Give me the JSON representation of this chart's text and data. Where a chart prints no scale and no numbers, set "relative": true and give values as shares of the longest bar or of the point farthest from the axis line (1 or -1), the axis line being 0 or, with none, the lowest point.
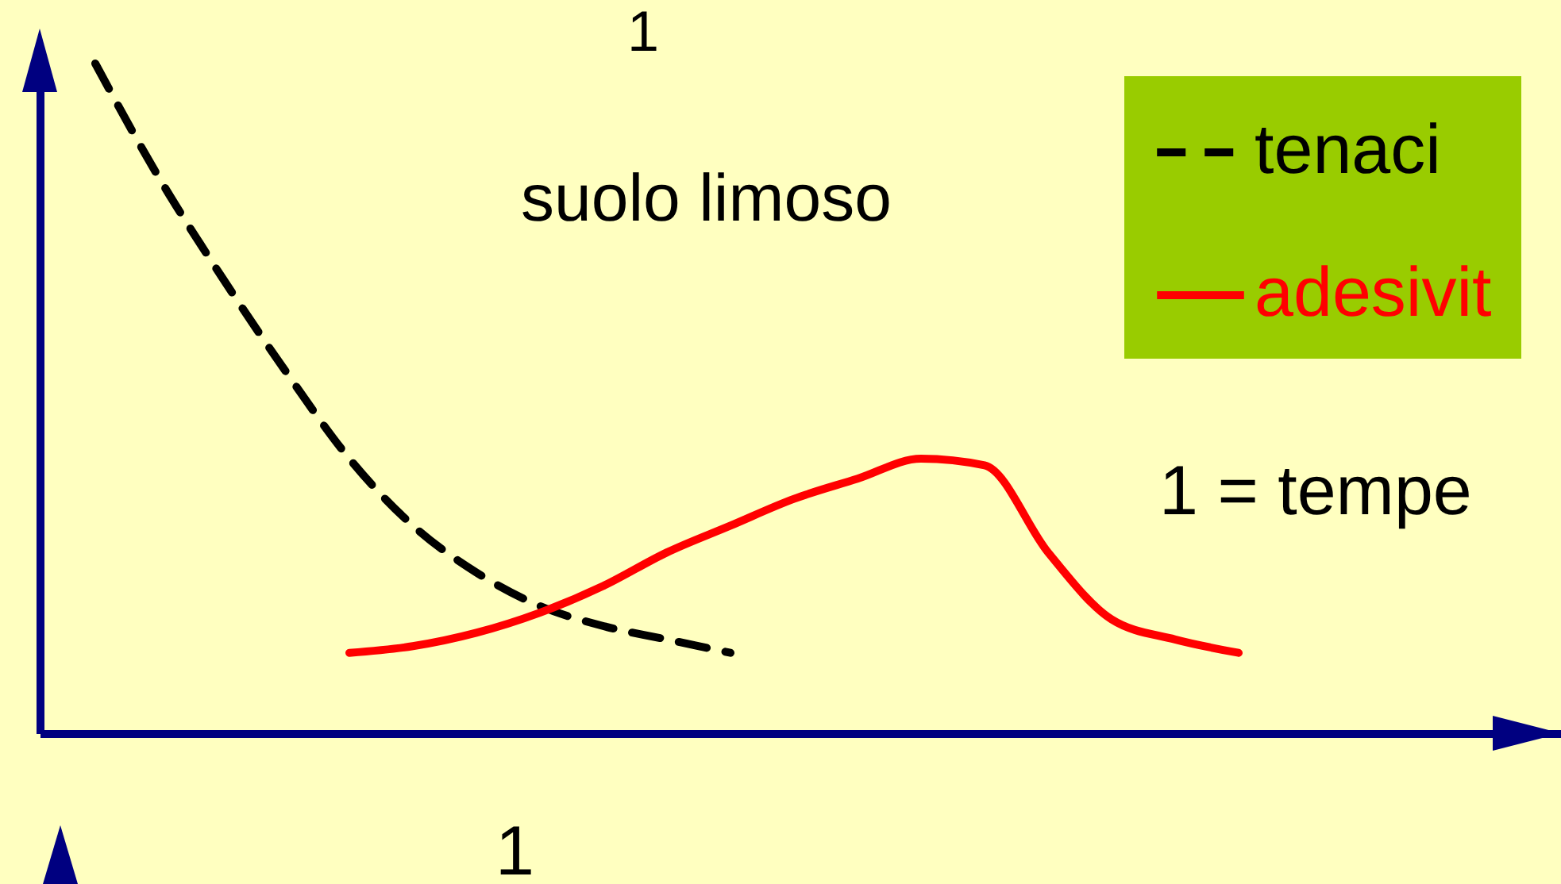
{
  "chart_data": {
    "type": "line",
    "title": "suolo limoso",
    "relative": true,
    "legend": "top right",
    "categories": [
      null,
      null,
      null,
      null,
      null,
      null,
      null,
      null,
      null,
      null,
      null,
      null,
      null,
      null,
      null,
      null,
      null,
      null,
      null,
      null,
      null,
      null,
      null
    ],
    "series": [
      {
        "name": "tenaci",
        "color": "#000000",
        "line_style": "dashed",
        "values": [
          1.0,
          0.83,
          0.68,
          0.54,
          0.41,
          0.31,
          0.24,
          0.19,
          0.16,
          0.14,
          0.12,
          null,
          null,
          null,
          null,
          null,
          null,
          null,
          null,
          null,
          null,
          null,
          null
        ]
      },
      {
        "name": "adesivit",
        "color": "#ff0000",
        "line_style": "solid",
        "values": [
          null,
          null,
          null,
          null,
          0.12,
          0.13,
          0.15,
          0.18,
          0.22,
          0.27,
          0.31,
          0.35,
          0.38,
          0.41,
          0.4,
          0.27,
          0.17,
          0.14,
          0.12,
          null,
          null,
          null,
          null
        ]
      }
    ],
    "annotations": [
      "1 =  tempe",
      "1",
      "1"
    ]
  }
}
